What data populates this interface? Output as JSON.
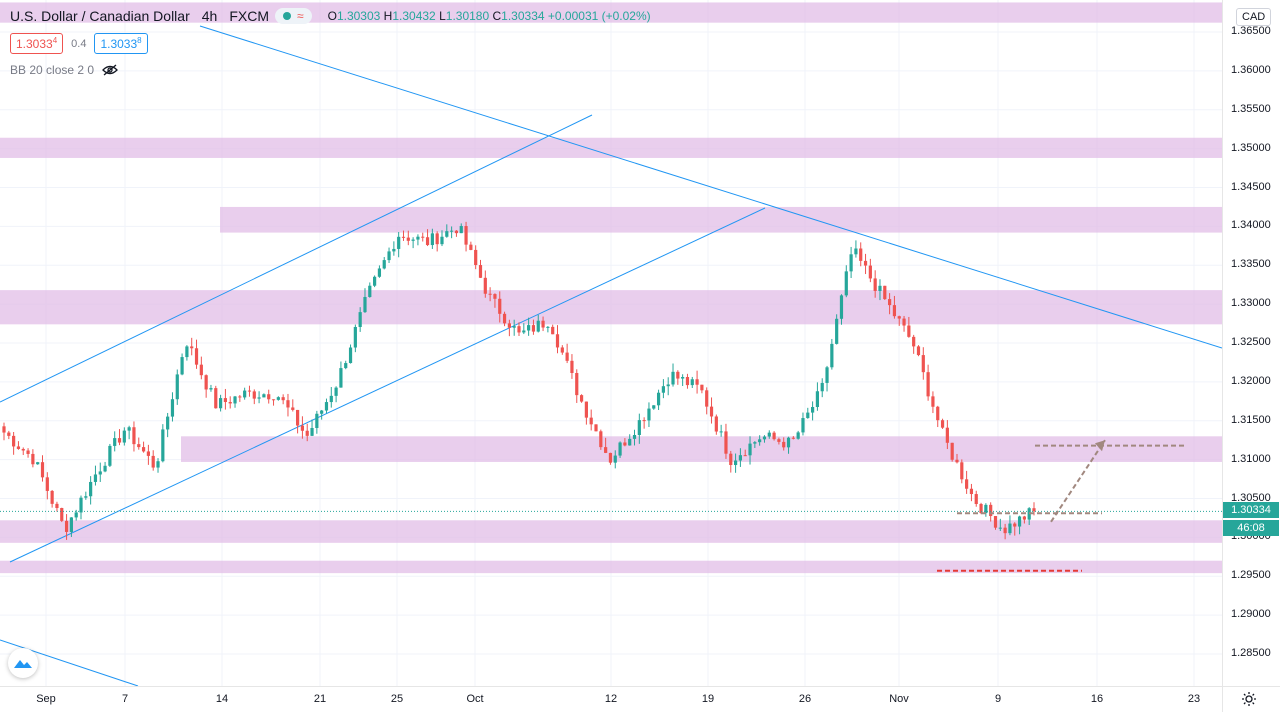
{
  "header": {
    "symbol": "U.S. Dollar / Canadian Dollar",
    "interval": "4h",
    "exchange": "FXCM",
    "wave_icon": "≈",
    "ohlc": {
      "o_label": "O",
      "o": "1.30303",
      "h_label": "H",
      "h": "1.30432",
      "l_label": "L",
      "l": "1.30180",
      "c_label": "C",
      "c": "1.30334",
      "change": "+0.00031 (+0.02%)"
    },
    "sell_price_main": "1.3033",
    "sell_price_sup": "4",
    "spread": "0.4",
    "buy_price_main": "1.3033",
    "buy_price_sup": "8",
    "indicator": "BB 20 close 2 0"
  },
  "axis": {
    "currency": "CAD",
    "y_labels": [
      "1.36500",
      "1.36000",
      "1.35500",
      "1.35000",
      "1.34500",
      "1.34000",
      "1.33500",
      "1.33000",
      "1.32500",
      "1.32000",
      "1.31500",
      "1.31000",
      "1.30500",
      "1.30000",
      "1.29500",
      "1.29000",
      "1.28500"
    ],
    "last_price": "1.30334",
    "countdown": "46:08",
    "x_labels": [
      "Sep",
      "7",
      "14",
      "21",
      "25",
      "Oct",
      "12",
      "19",
      "26",
      "Nov",
      "9",
      "16",
      "23"
    ]
  },
  "colors": {
    "up": "#26a69a",
    "down": "#ef5350",
    "zone": "#e1bee7",
    "trend": "#2196f3",
    "target": "#a1887f",
    "stop": "#e53935"
  },
  "chart_data": {
    "type": "candlestick",
    "title": "U.S. Dollar / Canadian Dollar",
    "ylim": [
      1.282,
      1.368
    ],
    "price_ticks": [
      1.365,
      1.36,
      1.355,
      1.35,
      1.345,
      1.34,
      1.335,
      1.33,
      1.325,
      1.32,
      1.315,
      1.31,
      1.305,
      1.3,
      1.295,
      1.29,
      1.285
    ],
    "dates": [
      "Sep",
      "7",
      "14",
      "21",
      "25",
      "Oct",
      "12",
      "19",
      "26",
      "Nov",
      "9",
      "16",
      "23"
    ],
    "close_path": [
      [
        1.3125,
        1.3135
      ],
      [
        1.306,
        1.31
      ],
      [
        1.3005,
        1.301
      ],
      [
        1.307,
        1.308
      ],
      [
        1.313,
        1.314
      ],
      [
        1.306,
        1.309
      ],
      [
        1.326,
        1.3255
      ],
      [
        1.318,
        1.317
      ],
      [
        1.319,
        1.3185
      ],
      [
        1.3195,
        1.3185
      ],
      [
        1.315,
        1.313
      ],
      [
        1.322,
        1.32
      ],
      [
        1.332,
        1.331
      ],
      [
        1.337,
        1.339
      ],
      [
        1.341,
        1.338
      ],
      [
        1.337,
        1.34
      ],
      [
        1.332,
        1.331
      ],
      [
        1.329,
        1.326
      ],
      [
        1.333,
        1.328
      ],
      [
        1.322,
        1.318
      ],
      [
        1.311,
        1.31
      ],
      [
        1.314,
        1.315
      ],
      [
        1.323,
        1.321
      ],
      [
        1.318,
        1.319
      ],
      [
        1.31,
        1.31
      ],
      [
        1.318,
        1.313
      ],
      [
        1.312,
        1.312
      ],
      [
        1.32,
        1.319
      ],
      [
        1.334,
        1.337
      ],
      [
        1.333,
        1.331
      ],
      [
        1.328,
        1.325
      ],
      [
        1.316,
        1.313
      ],
      [
        1.308,
        1.305
      ],
      [
        1.302,
        1.301
      ],
      [
        1.305,
        1.3034
      ]
    ],
    "last_close": 1.30334,
    "annotations": {
      "zones": [
        [
          1.3662,
          1.3688
        ],
        [
          1.3488,
          1.3514
        ],
        [
          1.3392,
          1.3425
        ],
        [
          1.3274,
          1.3318
        ],
        [
          1.3097,
          1.313
        ],
        [
          1.2993,
          1.3022
        ],
        [
          1.2954,
          1.297
        ]
      ],
      "target_level": 1.3118,
      "entry_level": 1.3031,
      "stop_level": 1.2957
    }
  }
}
